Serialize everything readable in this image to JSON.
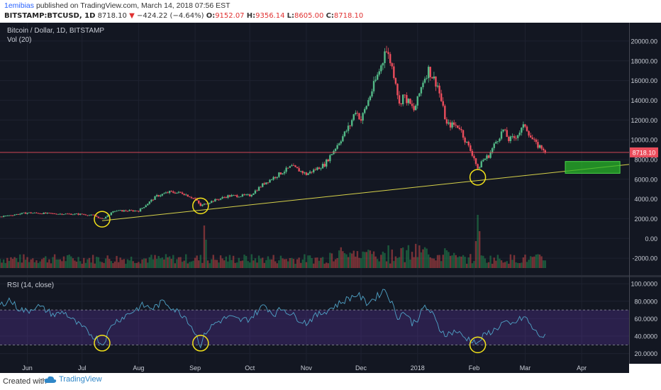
{
  "header": {
    "author": "1emibias",
    "published_text": "published on TradingView.com, March 14, 2018 07:56 EST",
    "symbol": "BITSTAMP:BTCUSD, 1D",
    "last": "8718.10",
    "change": "−424.22 (−4.64%)",
    "o_label": "O:",
    "o_value": "9152.07",
    "h_label": "H:",
    "h_value": "9356.14",
    "l_label": "L:",
    "l_value": "8605.00",
    "c_label": "C:",
    "c_value": "8718.10"
  },
  "footer": {
    "created_label": "Created with",
    "brand": "TradingView"
  },
  "chart_data": [
    {
      "type": "candlestick",
      "pane_title": "Bitcoin / Dollar, 1D, BITSTAMP",
      "volume_label": "Vol (20)",
      "y_ticks": [
        "20000.00",
        "18000.00",
        "16000.00",
        "14000.00",
        "12000.00",
        "10000.00",
        "8000.00",
        "6000.00",
        "4000.00",
        "2000.00",
        "0.00",
        "-2000.00"
      ],
      "ylim": [
        -3000,
        21000
      ],
      "last_price_label": "8718.10",
      "x_ticks": [
        "Jun",
        "Jul",
        "Aug",
        "Sep",
        "Oct",
        "Nov",
        "Dec",
        "2018",
        "Feb",
        "Mar",
        "Apr"
      ],
      "x_ticks_day": [
        15,
        45,
        76,
        107,
        137,
        168,
        198,
        229,
        260,
        288,
        319
      ],
      "x_range_day": [
        0,
        345
      ],
      "price_keypoints": [
        [
          0,
          2200
        ],
        [
          15,
          2600
        ],
        [
          30,
          2500
        ],
        [
          45,
          2450
        ],
        [
          52,
          2300
        ],
        [
          56,
          1950
        ],
        [
          63,
          2800
        ],
        [
          76,
          2800
        ],
        [
          86,
          4300
        ],
        [
          93,
          4700
        ],
        [
          100,
          4600
        ],
        [
          107,
          4000
        ],
        [
          110,
          3300
        ],
        [
          115,
          3700
        ],
        [
          125,
          4300
        ],
        [
          137,
          4350
        ],
        [
          145,
          5600
        ],
        [
          160,
          7300
        ],
        [
          168,
          6500
        ],
        [
          178,
          7500
        ],
        [
          185,
          9500
        ],
        [
          192,
          11500
        ],
        [
          195,
          13000
        ],
        [
          198,
          12000
        ],
        [
          203,
          14500
        ],
        [
          208,
          17000
        ],
        [
          210,
          18000
        ],
        [
          211,
          19400
        ],
        [
          214,
          18000
        ],
        [
          217,
          16000
        ],
        [
          219,
          13500
        ],
        [
          221,
          14500
        ],
        [
          224,
          13800
        ],
        [
          227,
          13000
        ],
        [
          229,
          14000
        ],
        [
          232,
          16000
        ],
        [
          235,
          17100
        ],
        [
          240,
          15500
        ],
        [
          245,
          11500
        ],
        [
          249,
          11500
        ],
        [
          252,
          11300
        ],
        [
          255,
          10000
        ],
        [
          260,
          8200
        ],
        [
          262,
          6900
        ],
        [
          264,
          7800
        ],
        [
          268,
          8400
        ],
        [
          272,
          9800
        ],
        [
          276,
          11000
        ],
        [
          279,
          10000
        ],
        [
          282,
          10200
        ],
        [
          285,
          10800
        ],
        [
          288,
          11500
        ],
        [
          291,
          10300
        ],
        [
          294,
          9500
        ],
        [
          298,
          9100
        ],
        [
          299,
          8718
        ]
      ],
      "volume_note": "volume bars rendered procedurally at pane bottom, spikes near Sep mid and early Feb",
      "trendline": {
        "from": {
          "day": 56,
          "value": 1800
        },
        "to": {
          "day": 345,
          "value": 7500
        }
      },
      "target_zone": {
        "day_start": 310,
        "day_end": 340,
        "low": 6600,
        "high": 7800
      },
      "circles": [
        {
          "day": 56,
          "value": 1950
        },
        {
          "day": 110,
          "value": 3300
        },
        {
          "day": 262,
          "value": 6200
        }
      ]
    },
    {
      "type": "line",
      "pane_title": "RSI (14, close)",
      "y_ticks": [
        "100.0000",
        "80.0000",
        "60.0000",
        "40.0000",
        "20.0000"
      ],
      "ylim": [
        10,
        105
      ],
      "band": [
        30,
        70
      ],
      "rsi_keypoints": [
        [
          0,
          75
        ],
        [
          5,
          82
        ],
        [
          10,
          72
        ],
        [
          15,
          68
        ],
        [
          20,
          75
        ],
        [
          25,
          70
        ],
        [
          30,
          64
        ],
        [
          35,
          68
        ],
        [
          40,
          58
        ],
        [
          45,
          50
        ],
        [
          50,
          42
        ],
        [
          54,
          36
        ],
        [
          56,
          30
        ],
        [
          58,
          38
        ],
        [
          62,
          55
        ],
        [
          70,
          65
        ],
        [
          78,
          75
        ],
        [
          84,
          72
        ],
        [
          90,
          80
        ],
        [
          96,
          70
        ],
        [
          102,
          62
        ],
        [
          107,
          44
        ],
        [
          110,
          30
        ],
        [
          113,
          45
        ],
        [
          118,
          55
        ],
        [
          125,
          62
        ],
        [
          132,
          58
        ],
        [
          137,
          60
        ],
        [
          145,
          76
        ],
        [
          150,
          65
        ],
        [
          155,
          72
        ],
        [
          162,
          62
        ],
        [
          168,
          55
        ],
        [
          172,
          62
        ],
        [
          178,
          68
        ],
        [
          184,
          75
        ],
        [
          190,
          82
        ],
        [
          196,
          88
        ],
        [
          201,
          78
        ],
        [
          206,
          84
        ],
        [
          211,
          94
        ],
        [
          214,
          82
        ],
        [
          218,
          62
        ],
        [
          222,
          68
        ],
        [
          226,
          55
        ],
        [
          229,
          60
        ],
        [
          233,
          74
        ],
        [
          237,
          66
        ],
        [
          241,
          48
        ],
        [
          245,
          42
        ],
        [
          250,
          46
        ],
        [
          255,
          38
        ],
        [
          260,
          35
        ],
        [
          262,
          30
        ],
        [
          264,
          38
        ],
        [
          268,
          44
        ],
        [
          272,
          48
        ],
        [
          276,
          56
        ],
        [
          280,
          52
        ],
        [
          284,
          58
        ],
        [
          288,
          62
        ],
        [
          291,
          52
        ],
        [
          294,
          44
        ],
        [
          297,
          40
        ],
        [
          299,
          39
        ]
      ],
      "circles": [
        {
          "day": 56,
          "value": 32
        },
        {
          "day": 110,
          "value": 32
        },
        {
          "day": 262,
          "value": 30
        }
      ]
    }
  ]
}
